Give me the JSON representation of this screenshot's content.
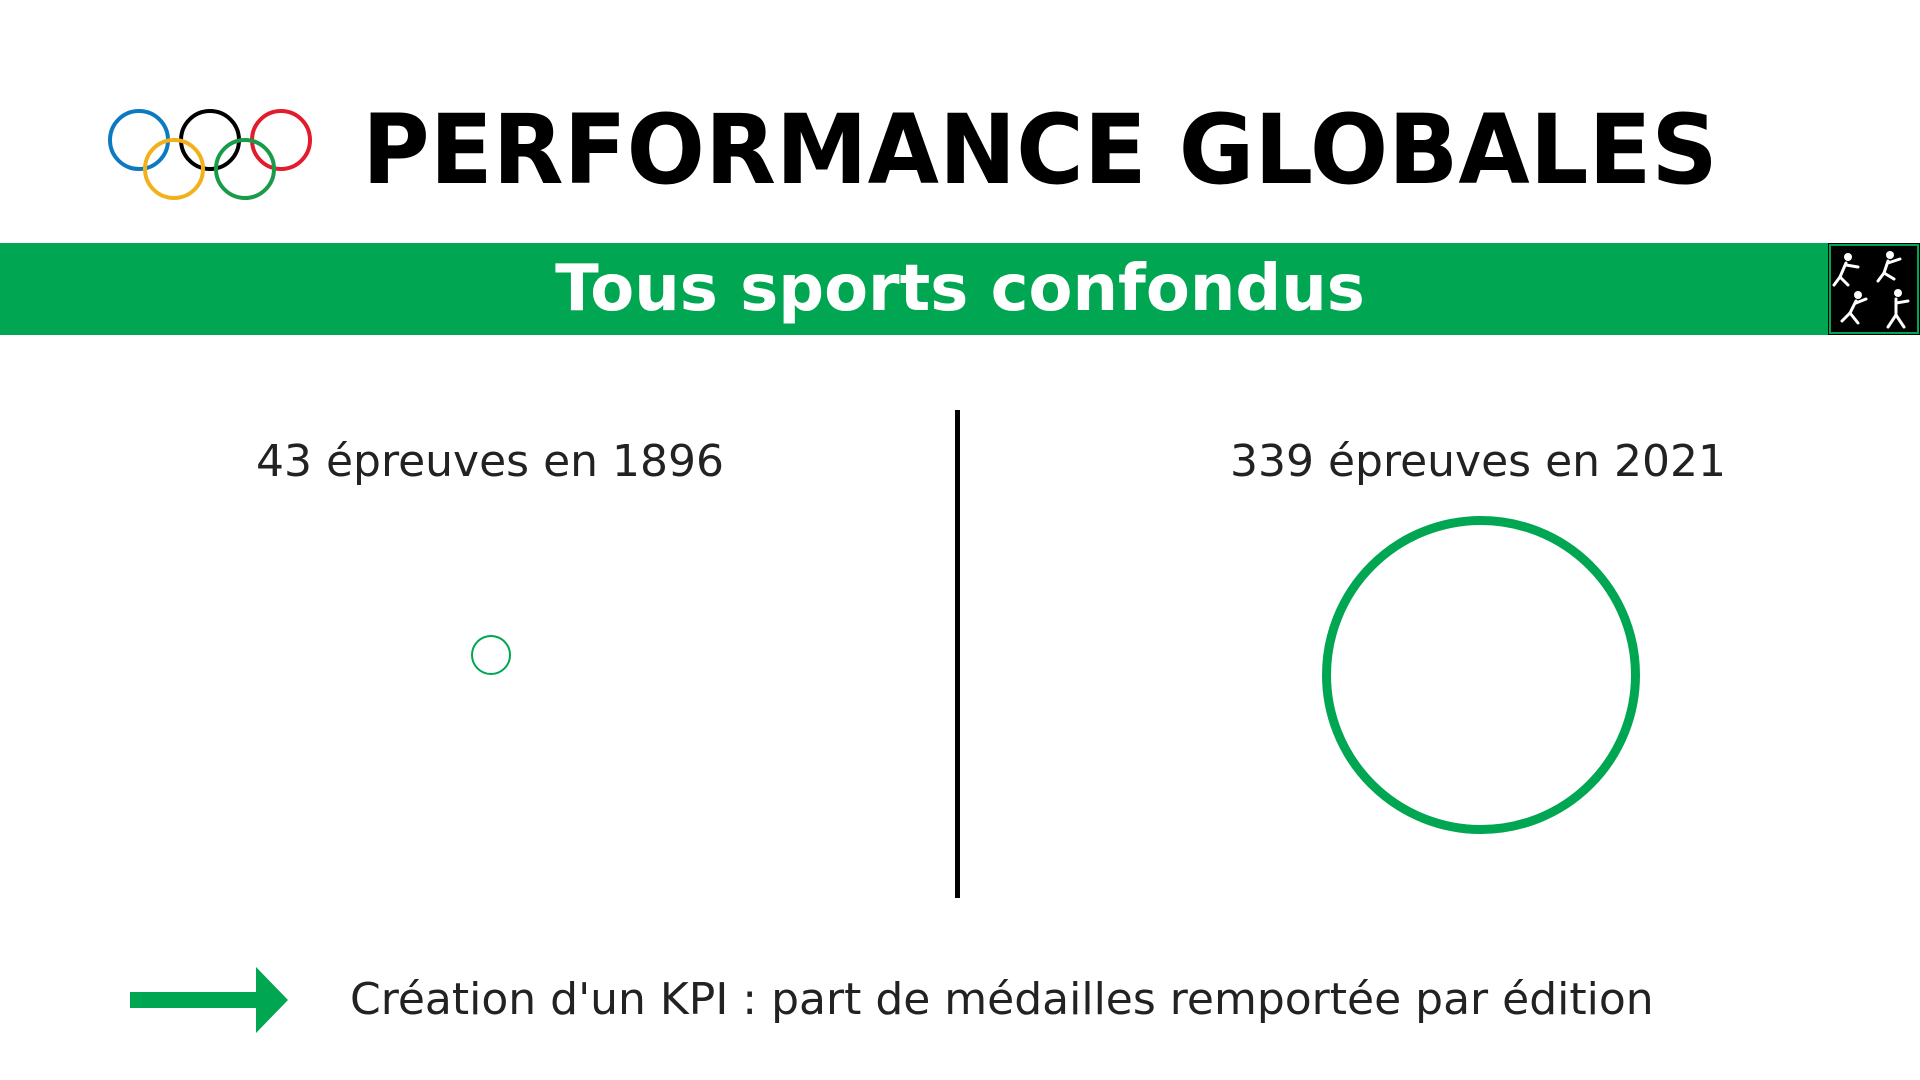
{
  "header": {
    "title": "PERFORMANCE GLOBALES",
    "logo": "olympic-rings-icon"
  },
  "band": {
    "subtitle": "Tous sports confondus",
    "icon": "athletes-pictogram-icon",
    "color": "#00a651"
  },
  "stats": {
    "left_label": "43 épreuves en 1896",
    "right_label": "339 épreuves en 2021"
  },
  "footer": {
    "icon": "arrow-right-icon",
    "text": "Création d'un KPI : part de médailles remportée par édition"
  },
  "colors": {
    "accent": "#00a651",
    "ring_blue": "#0b7ac1",
    "ring_yellow": "#f2b11b",
    "ring_black": "#000000",
    "ring_green": "#1a9b4a",
    "ring_red": "#e21b2d"
  }
}
